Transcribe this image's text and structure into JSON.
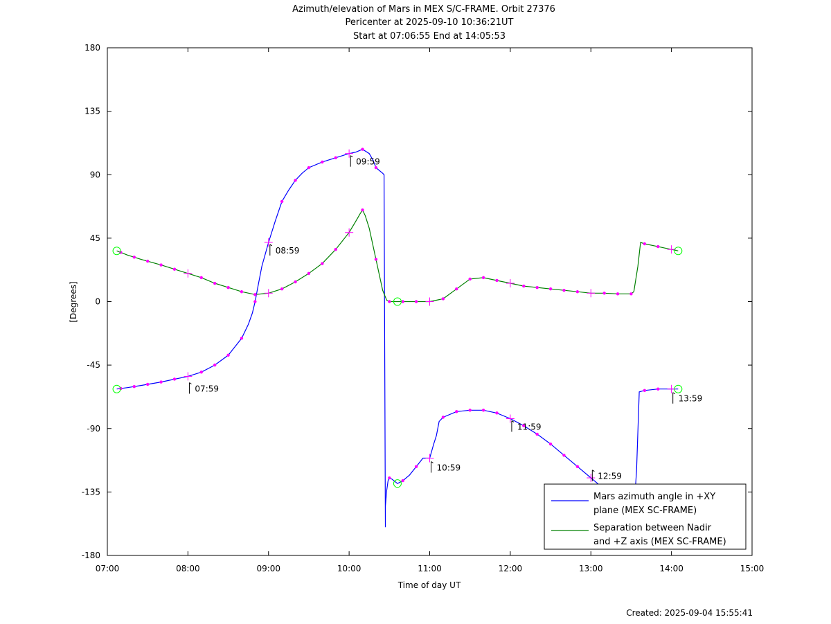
{
  "colors": {
    "azimuth": "#0000ff",
    "separation": "#008000",
    "marker": "#ff00ff",
    "endpoint": "#00ff00",
    "axis": "#000000",
    "background": "#ffffff"
  },
  "chart_data": {
    "type": "line",
    "title": "Azimuth/elevation of Mars in MEX S/C-FRAME.  Orbit 27376",
    "subtitle": "Pericenter at 2025-09-10 10:36:21UT",
    "subtitle2": "Start at 07:06:55 End at 14:05:53",
    "xlabel": "Time of day UT",
    "ylabel": "[Degrees]",
    "xlim": [
      "07:00",
      "15:00"
    ],
    "ylim": [
      -180,
      180
    ],
    "x_ticks": [
      "07:00",
      "08:00",
      "09:00",
      "10:00",
      "11:00",
      "12:00",
      "13:00",
      "14:00",
      "15:00"
    ],
    "y_ticks": [
      180,
      135,
      90,
      45,
      0,
      -45,
      -90,
      -135,
      -180
    ],
    "grid": false,
    "legend_position": "bottom-right",
    "created": "Created: 2025-09-04 15:55:41",
    "series": [
      {
        "name": "Mars azimuth angle in +XY plane (MEX SC-FRAME)",
        "legend_lines": [
          "Mars azimuth angle in +XY",
          "plane (MEX SC-FRAME)"
        ],
        "x": [
          "07:07",
          "07:15",
          "07:25",
          "07:40",
          "07:50",
          "08:00",
          "08:10",
          "08:20",
          "08:30",
          "08:40",
          "08:45",
          "08:48",
          "08:50",
          "08:52",
          "08:55",
          "09:00",
          "09:05",
          "09:10",
          "09:15",
          "09:20",
          "09:25",
          "09:30",
          "09:40",
          "09:50",
          "10:00",
          "10:05",
          "10:10",
          "10:15",
          "10:18",
          "10:20",
          "10:25",
          "10:26",
          "10:27",
          "10:27",
          "10:28",
          "10:29",
          "10:30",
          "10:32",
          "10:36",
          "10:40",
          "10:45",
          "10:50",
          "10:55",
          "11:00",
          "11:03",
          "11:05",
          "11:07",
          "11:10",
          "11:20",
          "11:30",
          "11:40",
          "11:50",
          "12:00",
          "12:10",
          "12:20",
          "12:30",
          "12:40",
          "12:50",
          "13:00",
          "13:10",
          "13:20",
          "13:30",
          "13:32",
          "13:34",
          "13:36",
          "13:40",
          "13:50",
          "14:00",
          "14:05"
        ],
        "y": [
          -62,
          -61,
          -59.5,
          -57,
          -55,
          -53,
          -50,
          -45,
          -38,
          -26,
          -16,
          -8,
          0,
          10,
          25,
          42,
          57,
          71,
          79,
          86,
          91,
          95,
          99,
          102,
          105,
          106,
          108,
          105,
          100,
          95,
          91,
          90,
          -160,
          -145,
          -134,
          -127,
          -125,
          -126,
          -129,
          -127,
          -123,
          -117,
          -111,
          -111,
          -101,
          -95,
          -85,
          -82,
          -78,
          -77,
          -77,
          -79,
          -83,
          -88,
          -94,
          -101,
          -109,
          -117,
          -125,
          -133,
          -140,
          -145,
          -149,
          -120,
          -64,
          -63,
          -62,
          -62,
          -62
        ],
        "markers_every_10min": true,
        "hour_labels": [
          {
            "x": "07:59",
            "y": -55,
            "text": "07:59"
          },
          {
            "x": "08:59",
            "y": 43,
            "text": "08:59"
          },
          {
            "x": "09:59",
            "y": 106,
            "text": "09:59"
          },
          {
            "x": "10:59",
            "y": -111,
            "text": "10:59"
          },
          {
            "x": "11:59",
            "y": -82,
            "text": "11:59"
          },
          {
            "x": "12:59",
            "y": -117,
            "text": "12:59"
          },
          {
            "x": "13:59",
            "y": -62,
            "text": "13:59"
          }
        ]
      },
      {
        "name": "Separation between Nadir and +Z axis (MEX SC-FRAME)",
        "legend_lines": [
          "Separation between Nadir",
          "and +Z axis (MEX SC-FRAME)"
        ],
        "x": [
          "07:07",
          "07:15",
          "07:25",
          "07:40",
          "07:50",
          "08:00",
          "08:10",
          "08:20",
          "08:30",
          "08:40",
          "08:50",
          "09:00",
          "09:10",
          "09:20",
          "09:30",
          "09:40",
          "09:50",
          "10:00",
          "10:05",
          "10:08",
          "10:10",
          "10:12",
          "10:15",
          "10:20",
          "10:25",
          "10:28",
          "10:30",
          "10:36",
          "10:40",
          "10:50",
          "11:00",
          "11:10",
          "11:20",
          "11:30",
          "11:40",
          "11:50",
          "12:00",
          "12:10",
          "12:20",
          "12:30",
          "12:40",
          "12:50",
          "13:00",
          "13:10",
          "13:20",
          "13:30",
          "13:32",
          "13:35",
          "13:37",
          "13:40",
          "13:50",
          "14:00",
          "14:05"
        ],
        "y": [
          36,
          33,
          30,
          26,
          23,
          20,
          17,
          13,
          10,
          7,
          5,
          6,
          9,
          14,
          20,
          27,
          37,
          49,
          57,
          62,
          65,
          61,
          52,
          30,
          8,
          1,
          0,
          0,
          0,
          0,
          0,
          2,
          9,
          16,
          17,
          15,
          13,
          11,
          10,
          9,
          8,
          7,
          6,
          6,
          5.5,
          5.5,
          7,
          25,
          42,
          41,
          39,
          37,
          36
        ],
        "markers_every_10min": true,
        "hour_labels": []
      }
    ]
  }
}
